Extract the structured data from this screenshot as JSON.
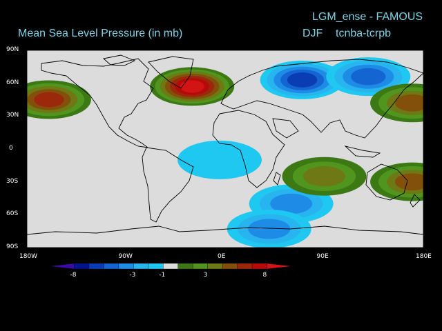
{
  "header": {
    "experiment": "LGM_ense - FAMOUS",
    "variable": "Mean Sea Level Pressure (in mb)",
    "season": "DJF",
    "comparison": "tcnba-tcrpb"
  },
  "chart_data": {
    "type": "heatmap",
    "projection": "equirectangular",
    "grid": false,
    "xlim": [
      -180,
      180
    ],
    "ylim": [
      -90,
      90
    ],
    "x_ticks": [
      -180,
      -90,
      0,
      90,
      180
    ],
    "x_tick_labels": [
      "180W",
      "90W",
      "0E",
      "90E",
      "180E"
    ],
    "y_ticks": [
      90,
      60,
      30,
      0,
      -30,
      -60,
      -90
    ],
    "y_tick_labels": [
      "90N",
      "60N",
      "30N",
      "0",
      "30S",
      "60S",
      "90S"
    ],
    "colorbar": {
      "levels": [
        -8,
        -6,
        -5,
        -4,
        -3,
        -2,
        -1,
        1,
        2,
        3,
        4,
        5,
        6,
        8
      ],
      "labels": [
        "-8",
        "-3",
        "-1",
        "3",
        "8"
      ],
      "label_levels": [
        -8,
        -3,
        -1,
        3,
        8
      ],
      "colors": [
        "#3b0aa6",
        "#00148c",
        "#0a3cb4",
        "#1464d2",
        "#1e8ce6",
        "#28b4ee",
        "#1ec8f0",
        "#dcdcdc",
        "#3c7814",
        "#50961e",
        "#6e7814",
        "#82500a",
        "#9b280a",
        "#b40a0a",
        "#d21414"
      ]
    },
    "anomalies": [
      {
        "name": "N. Pacific high",
        "lon": -160,
        "lat": 45,
        "value": 5
      },
      {
        "name": "N. Atlantic high",
        "lon": -30,
        "lat": 57,
        "value": 8
      },
      {
        "name": "Arctic Eurasia low",
        "lon": 70,
        "lat": 63,
        "value": -5
      },
      {
        "name": "Siberia low",
        "lon": 130,
        "lat": 66,
        "value": -4
      },
      {
        "name": "NW Pacific high",
        "lon": 170,
        "lat": 42,
        "value": 4
      },
      {
        "name": "Southern Ocean Indian low",
        "lon": 60,
        "lat": -50,
        "value": -3
      },
      {
        "name": "S. Atlantic low",
        "lon": -5,
        "lat": -10,
        "value": -1
      },
      {
        "name": "Antarctic coast low",
        "lon": 40,
        "lat": -73,
        "value": -3
      },
      {
        "name": "S. Indian high",
        "lon": 90,
        "lat": -25,
        "value": 3
      },
      {
        "name": "Australia high",
        "lon": 170,
        "lat": -30,
        "value": 4
      }
    ]
  }
}
